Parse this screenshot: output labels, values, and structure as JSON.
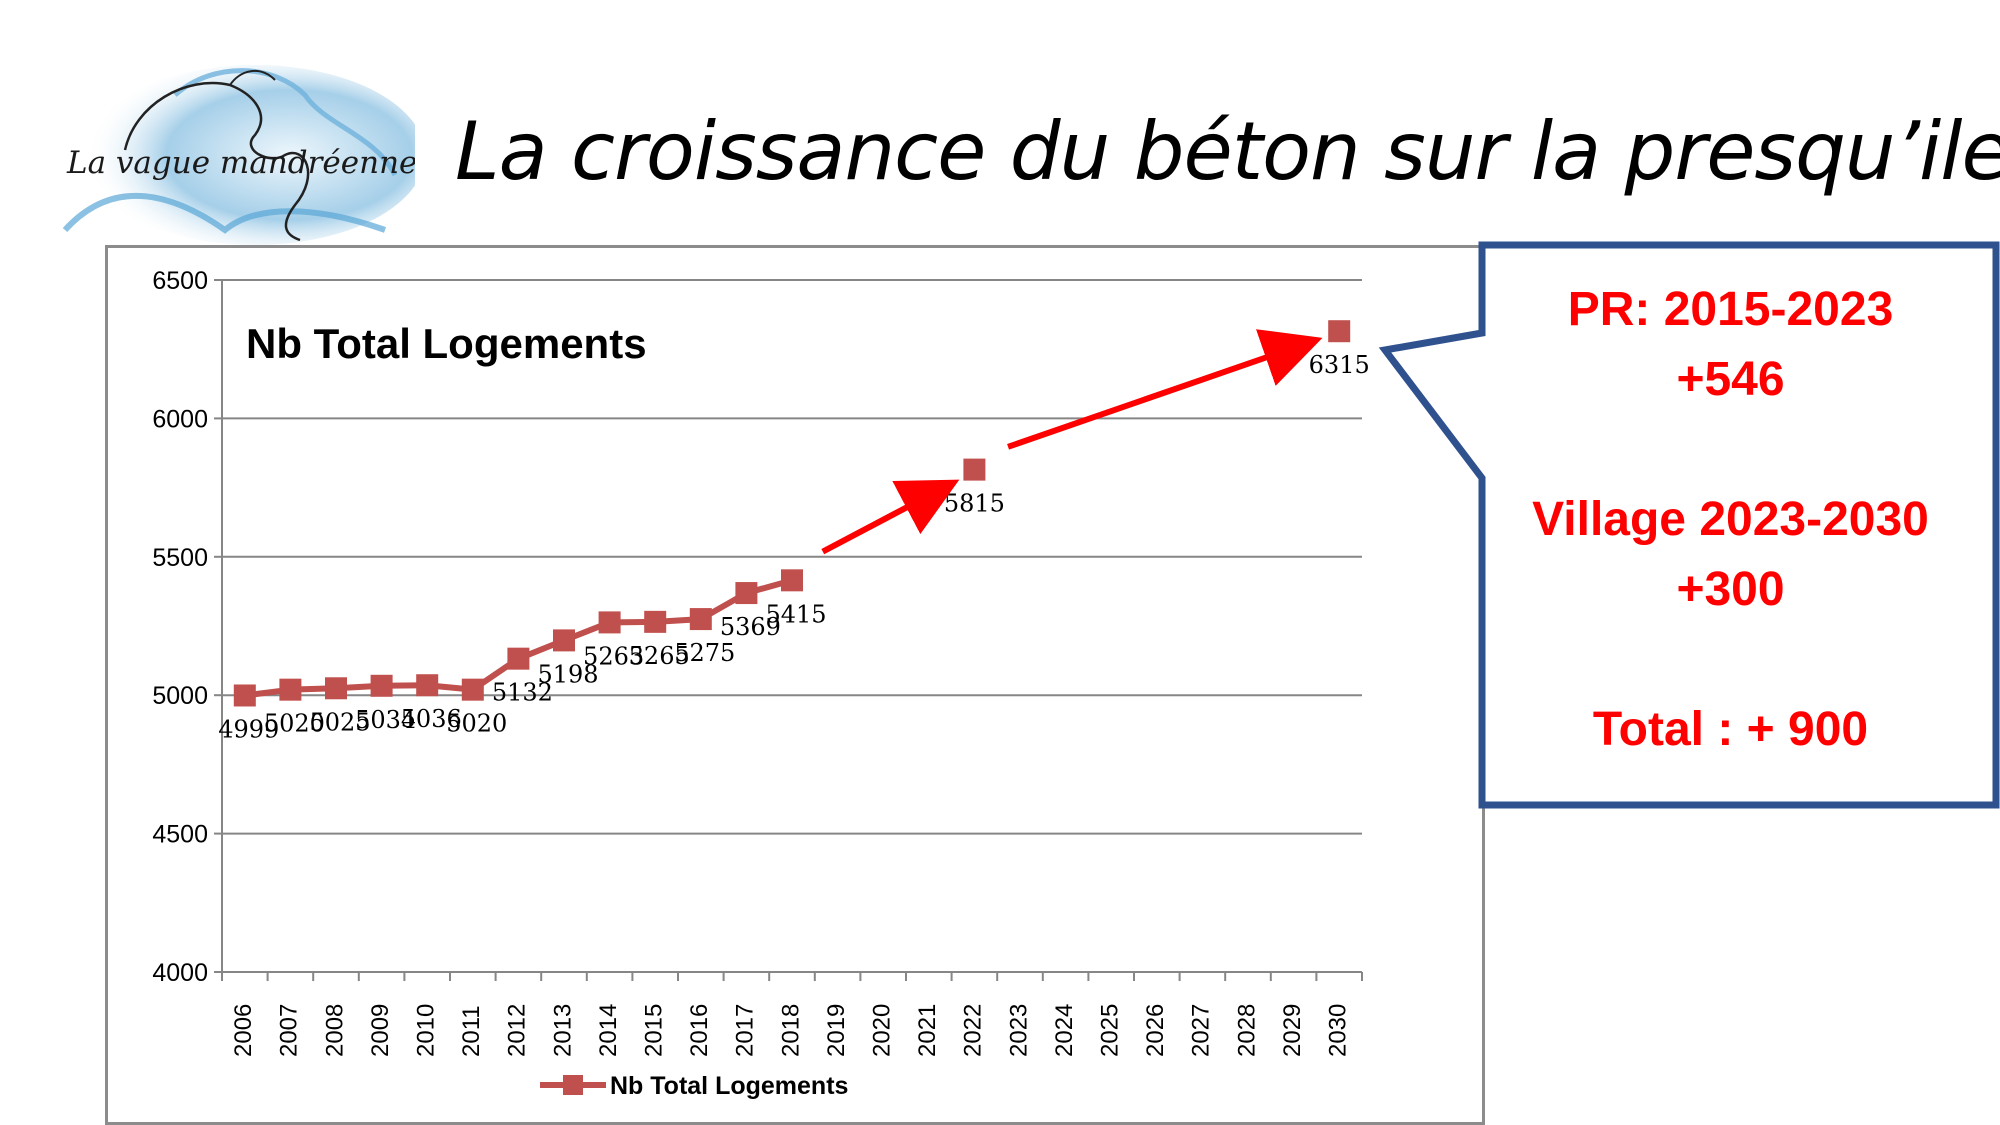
{
  "logo": {
    "text": "La vague mandréenne",
    "icon": "wave-logo-icon"
  },
  "slide_title": "La croissance du béton sur la presqu’ile",
  "callout": {
    "line1": "PR: 2015-2023",
    "line2": "+546",
    "line3": "Village 2023-2030",
    "line4": "+300",
    "line5": "Total : + 900",
    "text_color": "#ff0000",
    "border_color": "#2f528f"
  },
  "chart_data": {
    "type": "line",
    "title": "Nb Total Logements",
    "categories": [
      "2006",
      "2007",
      "2008",
      "2009",
      "2010",
      "2011",
      "2012",
      "2013",
      "2014",
      "2015",
      "2016",
      "2017",
      "2018",
      "2019",
      "2020",
      "2021",
      "2022",
      "2023",
      "2024",
      "2025",
      "2026",
      "2027",
      "2028",
      "2029",
      "2030"
    ],
    "series": [
      {
        "name": "Nb Total Logements",
        "color": "#c0504d",
        "values": [
          4999,
          5020,
          5025,
          5034,
          5036,
          5020,
          5132,
          5198,
          5263,
          5265,
          5275,
          5369,
          5415,
          null,
          null,
          null,
          5815,
          null,
          null,
          null,
          null,
          null,
          null,
          null,
          6315
        ],
        "labels": [
          "4999",
          "5020",
          "5025",
          "5034",
          "5036",
          "5020",
          "5132",
          "5198",
          "5263",
          "5265",
          "5275",
          "5369",
          "5415",
          "",
          "",
          "",
          "5815",
          "",
          "",
          "",
          "",
          "",
          "",
          "",
          "6315"
        ]
      }
    ],
    "ylim": [
      4000,
      6500
    ],
    "yticks": [
      4000,
      4500,
      5000,
      5500,
      6000,
      6500
    ],
    "grid": true,
    "legend": "bottom",
    "annotation_arrows": [
      {
        "from": [
          "2018",
          5415
        ],
        "to": [
          "2022",
          5815
        ],
        "color": "#ff0000"
      },
      {
        "from": [
          "2022",
          5815
        ],
        "to": [
          "2030",
          6315
        ],
        "color": "#ff0000"
      }
    ]
  }
}
